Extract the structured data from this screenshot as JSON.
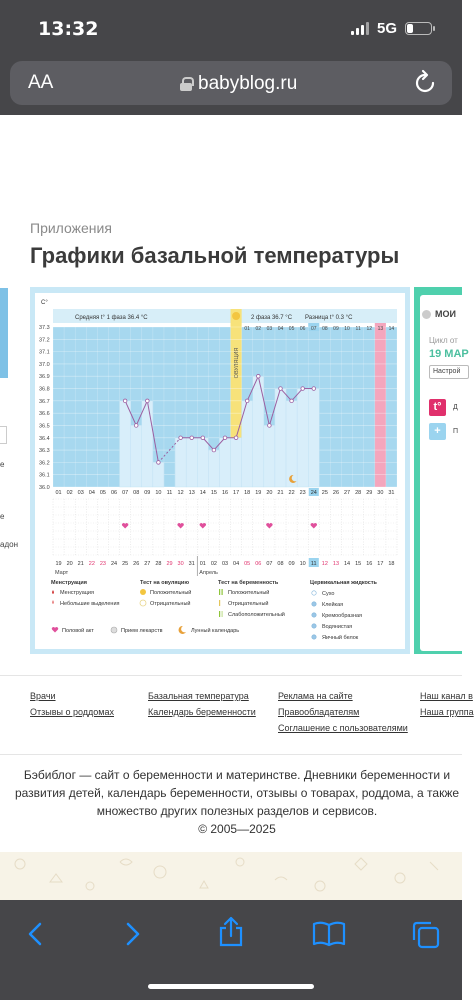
{
  "status": {
    "time": "13:32",
    "network": "5G",
    "battery_level": 0.25
  },
  "browser": {
    "text_size_label": "AA",
    "url": "babyblog.ru"
  },
  "page": {
    "breadcrumb": "Приложения",
    "title": "Графики базальной температуры"
  },
  "left_edge": {
    "text_a": "е",
    "text_b": "е",
    "text_c": "адон"
  },
  "chart": {
    "unit_label": "C°",
    "phase1_label": "Средняя t° 1 фаза 36.4 °C",
    "phase2_label": "2 фаза 36.7 °C",
    "diff_label": "Разница t° 0.3 °C",
    "ovulation_label": "ОВУЛЯЦИЯ",
    "month_start": "Март",
    "month_second": "Апрель"
  },
  "chart_data": {
    "type": "line",
    "y_ticks": [
      "37.3",
      "37.2",
      "37.1",
      "37.0",
      "36.9",
      "36.8",
      "36.7",
      "36.6",
      "36.5",
      "36.4",
      "36.3",
      "36.2",
      "36.1",
      "36.0"
    ],
    "ylim": [
      36.0,
      37.3
    ],
    "cycle_days": [
      "01",
      "02",
      "03",
      "04",
      "05",
      "06",
      "07",
      "08",
      "09",
      "10",
      "11",
      "12",
      "13",
      "14",
      "15",
      "16",
      "17",
      "18",
      "19",
      "20",
      "21",
      "22",
      "23",
      "24",
      "25",
      "26",
      "27",
      "28",
      "29",
      "30",
      "31"
    ],
    "phase2_days": [
      "01",
      "02",
      "03",
      "04",
      "05",
      "06",
      "07",
      "08",
      "09",
      "10",
      "11",
      "12",
      "13",
      "14"
    ],
    "temperatures": [
      {
        "day": 7,
        "value": 36.7
      },
      {
        "day": 8,
        "value": 36.5
      },
      {
        "day": 9,
        "value": 36.7
      },
      {
        "day": 10,
        "value": 36.2
      },
      {
        "day": 12,
        "value": 36.4
      },
      {
        "day": 13,
        "value": 36.4
      },
      {
        "day": 14,
        "value": 36.4
      },
      {
        "day": 15,
        "value": 36.3
      },
      {
        "day": 16,
        "value": 36.4
      },
      {
        "day": 17,
        "value": 36.4
      },
      {
        "day": 18,
        "value": 36.7
      },
      {
        "day": 19,
        "value": 36.9
      },
      {
        "day": 20,
        "value": 36.5
      },
      {
        "day": 21,
        "value": 36.8
      },
      {
        "day": 22,
        "value": 36.7
      },
      {
        "day": 23,
        "value": 36.8
      },
      {
        "day": 24,
        "value": 36.8
      }
    ],
    "ovulation_day": 17,
    "current_day": 24,
    "period_day": 30,
    "intercourse_days": [
      7,
      12,
      14,
      20,
      24
    ],
    "moon_day": 22,
    "dates": [
      "19",
      "20",
      "21",
      "22",
      "23",
      "24",
      "25",
      "26",
      "27",
      "28",
      "29",
      "30",
      "31",
      "01",
      "02",
      "03",
      "04",
      "05",
      "06",
      "07",
      "08",
      "09",
      "10",
      "11",
      "12",
      "13",
      "14",
      "15",
      "16",
      "17",
      "18"
    ],
    "date_colors": [
      "#333",
      "#333",
      "#333",
      "#e0306c",
      "#e0306c",
      "#333",
      "#333",
      "#333",
      "#333",
      "#333",
      "#e0306c",
      "#e0306c",
      "#333",
      "#333",
      "#333",
      "#333",
      "#333",
      "#e0306c",
      "#e0306c",
      "#333",
      "#333",
      "#333",
      "#333",
      "#333",
      "#e0306c",
      "#e0306c",
      "#333",
      "#333",
      "#333",
      "#333",
      "#333"
    ],
    "highlight_date_index": 23
  },
  "legend": {
    "col1_title": "Менструация",
    "menstruation": "Менструация",
    "small_discharge": "Небольшие выделения",
    "col2_title": "Тест на овуляцию",
    "positive": "Положительный",
    "negative": "Отрицательный",
    "col3_title": "Тест на беременность",
    "preg_positive": "Положительный",
    "preg_negative": "Отрицательный",
    "preg_weak": "Слабоположительный",
    "col4_title": "Цервикальная жидкость",
    "dry": "Сухо",
    "sticky": "Клейкая",
    "creamy": "Кремообразная",
    "watery": "Водянистая",
    "egg_white": "Яичный белок",
    "intercourse": "Половой акт",
    "medicine": "Прием лекарств",
    "lunar": "Лунный календарь"
  },
  "right_panel": {
    "moi": "МОИ",
    "cycle": "Цикл от",
    "date": "19 МАР",
    "settings": "Настрой",
    "btn1_icon": "t°",
    "btn1": "Д",
    "btn2_icon": "+",
    "btn2": "П"
  },
  "footer": {
    "links": [
      "Врачи",
      "Отзывы о роддомах",
      "Базальная температура",
      "Календарь беременности",
      "Реклама на сайте",
      "Правообладателям",
      "Соглашение с пользователями",
      "Наш канал в",
      "Наша группа"
    ],
    "about": "Бэбиблог — сайт о беременности и материнстве. Дневники беременности и развития детей, календарь беременности, отзывы о товарах, роддома, а также множество других полезных разделов и сервисов.",
    "copyright": "© 2005—2025"
  },
  "colors": {
    "accent": "#4fd0ad",
    "chart_bg": "#a7d8ef",
    "toolbar_icon": "#1e90ff",
    "period": "#f4a6bd",
    "ovulation": "#f7e27a"
  },
  "icons": [
    "lock-icon",
    "reload-icon",
    "back-icon",
    "forward-icon",
    "share-icon",
    "bookmarks-icon",
    "tabs-icon",
    "heart-icon",
    "moon-icon"
  ]
}
